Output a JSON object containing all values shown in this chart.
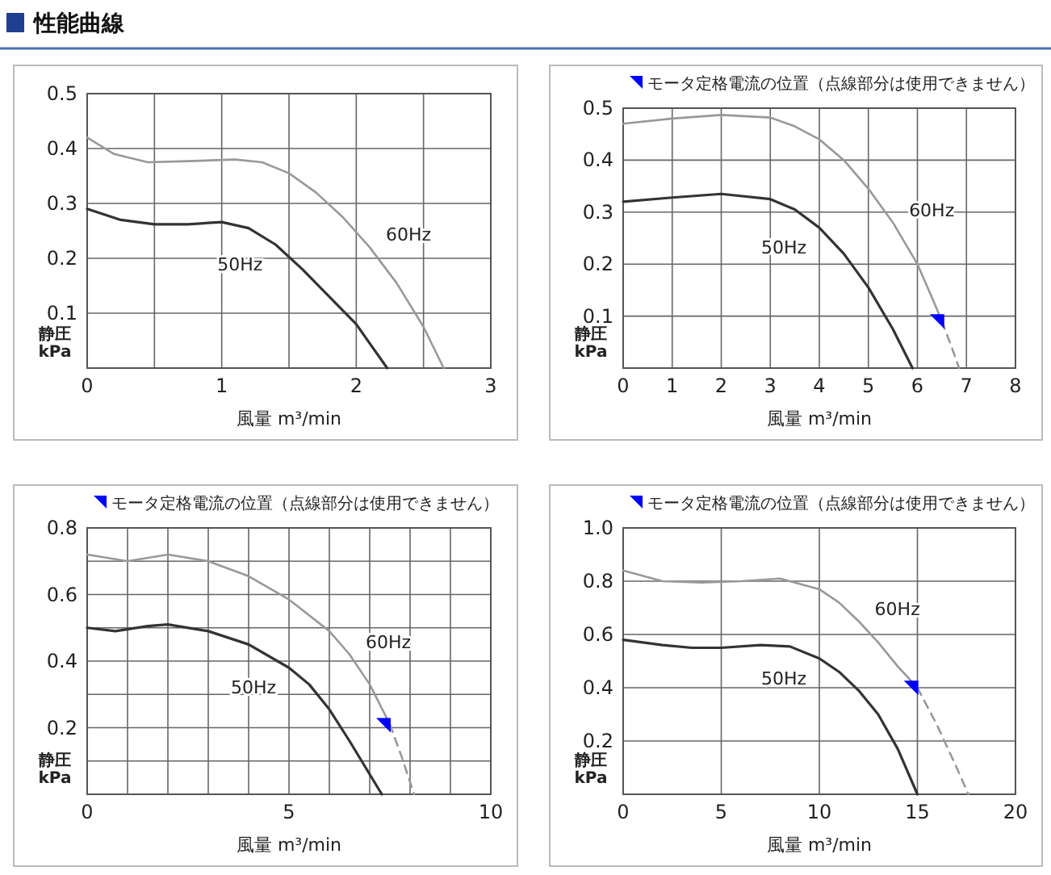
{
  "chart_data": [
    {
      "type": "line",
      "title": "性能曲線",
      "xlabel": "風量 m³/min",
      "ylabel": "静圧 kPa",
      "grid": true,
      "marker": "none",
      "xlim": [
        0,
        3
      ],
      "ylim": [
        0,
        0.5
      ],
      "xticks": [
        0,
        {
          "value": 0.5,
          "label": null
        },
        1,
        {
          "value": 1.5,
          "label": null
        },
        2,
        {
          "value": 2.5,
          "label": null
        },
        3
      ],
      "yticks": [
        0.1,
        0.2,
        0.3,
        0.4,
        0.5
      ],
      "series": [
        {
          "name": "50Hz",
          "color": "#333333",
          "line_style": "solid",
          "x": [
            0,
            0.25,
            0.5,
            0.75,
            1,
            1.2,
            1.4,
            1.6,
            1.8,
            2.0,
            2.1,
            2.23
          ],
          "values": [
            0.29,
            0.27,
            0.262,
            0.262,
            0.266,
            0.255,
            0.225,
            0.18,
            0.13,
            0.08,
            0.045,
            0
          ]
        },
        {
          "name": "60Hz",
          "color": "#999999",
          "line_style": "solid",
          "x": [
            0,
            0.2,
            0.45,
            0.75,
            1.1,
            1.3,
            1.5,
            1.7,
            1.9,
            2.1,
            2.3,
            2.5,
            2.65
          ],
          "values": [
            0.42,
            0.39,
            0.375,
            0.377,
            0.38,
            0.375,
            0.355,
            0.32,
            0.275,
            0.22,
            0.155,
            0.075,
            0
          ]
        }
      ]
    },
    {
      "type": "line",
      "xlabel": "風量 m³/min",
      "ylabel": "静圧 kPa",
      "grid": true,
      "marker": "none",
      "annotations": [
        "モータ定格電流の位置（点線部分は使用できません）"
      ],
      "xlim": [
        0,
        8
      ],
      "ylim": [
        0,
        0.5
      ],
      "xticks": [
        0,
        1,
        2,
        3,
        4,
        5,
        6,
        7,
        8
      ],
      "yticks": [
        0.1,
        0.2,
        0.3,
        0.4,
        0.5
      ],
      "series": [
        {
          "name": "50Hz",
          "color": "#333333",
          "line_style": "solid",
          "x": [
            0,
            1,
            2,
            3,
            3.5,
            4,
            4.5,
            5,
            5.5,
            5.9
          ],
          "values": [
            0.32,
            0.328,
            0.335,
            0.325,
            0.305,
            0.27,
            0.22,
            0.155,
            0.075,
            0
          ]
        },
        {
          "name": "60Hz",
          "color": "#999999",
          "line_style": "solid",
          "x": [
            0,
            1,
            2,
            3,
            3.5,
            4,
            4.5,
            5,
            5.5,
            6,
            6.3,
            6.5
          ],
          "values": [
            0.47,
            0.48,
            0.487,
            0.482,
            0.465,
            0.44,
            0.4,
            0.345,
            0.28,
            0.2,
            0.135,
            0.09
          ]
        },
        {
          "color": "#999999",
          "line_style": "dashed",
          "x": [
            6.5,
            6.7,
            6.85
          ],
          "values": [
            0.09,
            0.04,
            0
          ]
        },
        {
          "type": "scatter",
          "marker": "triangle",
          "color": "#0000ff",
          "x": [
            6.45
          ],
          "values": [
            0.085
          ]
        }
      ]
    },
    {
      "type": "line",
      "xlabel": "風量 m³/min",
      "ylabel": "静圧 kPa",
      "grid": true,
      "marker": "none",
      "annotations": [
        "モータ定格電流の位置（点線部分は使用できません）"
      ],
      "xlim": [
        0,
        10
      ],
      "ylim": [
        0,
        0.8
      ],
      "xticks": [
        0,
        {
          "value": 1,
          "label": null
        },
        {
          "value": 2,
          "label": null
        },
        {
          "value": 3,
          "label": null
        },
        {
          "value": 4,
          "label": null
        },
        5,
        {
          "value": 6,
          "label": null
        },
        {
          "value": 7,
          "label": null
        },
        {
          "value": 8,
          "label": null
        },
        {
          "value": 9,
          "label": null
        },
        10
      ],
      "yticks": [
        {
          "value": 0.1,
          "label": null
        },
        0.2,
        {
          "value": 0.3,
          "label": null
        },
        0.4,
        {
          "value": 0.5,
          "label": null
        },
        0.6,
        {
          "value": 0.7,
          "label": null
        },
        0.8
      ],
      "series": [
        {
          "name": "50Hz",
          "color": "#333333",
          "line_style": "solid",
          "x": [
            0,
            0.7,
            1.5,
            2,
            3,
            4,
            5,
            5.5,
            6,
            6.5,
            7,
            7.3
          ],
          "values": [
            0.5,
            0.49,
            0.505,
            0.51,
            0.49,
            0.45,
            0.38,
            0.33,
            0.255,
            0.16,
            0.06,
            0
          ]
        },
        {
          "name": "60Hz",
          "color": "#999999",
          "line_style": "solid",
          "x": [
            0,
            1,
            2,
            3,
            4,
            5,
            6,
            6.5,
            7,
            7.5
          ],
          "values": [
            0.72,
            0.7,
            0.72,
            0.7,
            0.655,
            0.585,
            0.49,
            0.42,
            0.33,
            0.21
          ]
        },
        {
          "color": "#999999",
          "line_style": "dashed",
          "x": [
            7.5,
            7.8,
            8.1
          ],
          "values": [
            0.21,
            0.11,
            0
          ]
        },
        {
          "type": "scatter",
          "marker": "triangle",
          "color": "#0000ff",
          "x": [
            7.4
          ],
          "values": [
            0.2
          ]
        }
      ]
    },
    {
      "type": "line",
      "xlabel": "風量 m³/min",
      "ylabel": "静圧 kPa",
      "grid": true,
      "marker": "none",
      "annotations": [
        "モータ定格電流の位置（点線部分は使用できません）"
      ],
      "xlim": [
        0,
        20
      ],
      "ylim": [
        0,
        1.0
      ],
      "xticks": [
        0,
        5,
        10,
        15,
        20
      ],
      "yticks": [
        0.2,
        0.4,
        0.6,
        0.8,
        {
          "value": 1.0,
          "label": "1.0"
        }
      ],
      "series": [
        {
          "name": "50Hz",
          "color": "#333333",
          "line_style": "solid",
          "x": [
            0,
            2,
            3.5,
            5,
            7,
            8.5,
            10,
            11,
            12,
            13,
            14,
            15
          ],
          "values": [
            0.58,
            0.56,
            0.55,
            0.55,
            0.56,
            0.555,
            0.51,
            0.46,
            0.39,
            0.3,
            0.17,
            0
          ]
        },
        {
          "name": "60Hz",
          "color": "#999999",
          "line_style": "solid",
          "x": [
            0,
            2,
            4,
            6,
            8,
            10,
            11,
            12,
            13,
            14,
            15
          ],
          "values": [
            0.84,
            0.8,
            0.795,
            0.8,
            0.81,
            0.77,
            0.72,
            0.65,
            0.57,
            0.48,
            0.4
          ]
        },
        {
          "color": "#999999",
          "line_style": "dashed",
          "x": [
            15,
            16,
            17,
            17.6
          ],
          "values": [
            0.4,
            0.26,
            0.1,
            0
          ]
        },
        {
          "type": "scatter",
          "marker": "triangle",
          "color": "#0000ff",
          "x": [
            14.8
          ],
          "values": [
            0.39
          ]
        }
      ]
    }
  ]
}
